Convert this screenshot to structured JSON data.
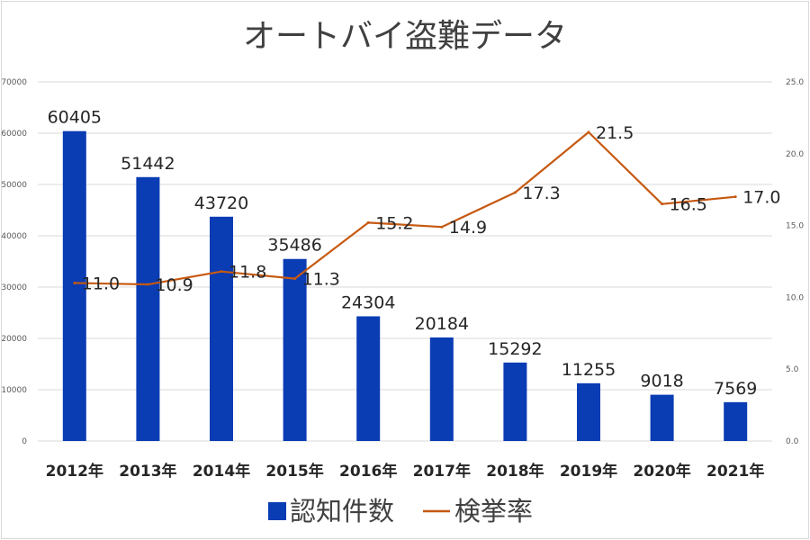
{
  "chart_data": {
    "type": "bar",
    "title": "オートバイ盗難データ",
    "categories": [
      "2012年",
      "2013年",
      "2014年",
      "2015年",
      "2016年",
      "2017年",
      "2018年",
      "2019年",
      "2020年",
      "2021年"
    ],
    "series": [
      {
        "name": "認知件数",
        "type": "bar",
        "axis": "left",
        "color": "#0a3cb4",
        "values": [
          60405,
          51442,
          43720,
          35486,
          24304,
          20184,
          15292,
          11255,
          9018,
          7569
        ],
        "labels": [
          "60405",
          "51442",
          "43720",
          "35486",
          "24304",
          "20184",
          "15292",
          "11255",
          "9018",
          "7569"
        ]
      },
      {
        "name": "検挙率",
        "type": "line",
        "axis": "right",
        "color": "#c65911",
        "values": [
          11.0,
          10.9,
          11.8,
          11.3,
          15.2,
          14.9,
          17.3,
          21.5,
          16.5,
          17.0
        ],
        "labels": [
          "11.0",
          "10.9",
          "11.8",
          "11.3",
          "15.2",
          "14.9",
          "17.3",
          "21.5",
          "16.5",
          "17.0"
        ]
      }
    ],
    "y_left": {
      "min": 0,
      "max": 70000,
      "ticks": [
        0,
        10000,
        20000,
        30000,
        40000,
        50000,
        60000,
        70000
      ],
      "tick_labels": [
        "0",
        "10000",
        "20000",
        "30000",
        "40000",
        "50000",
        "60000",
        "70000"
      ]
    },
    "y_right": {
      "min": 0,
      "max": 25,
      "ticks": [
        0,
        5,
        10,
        15,
        20,
        25
      ],
      "tick_labels": [
        "0.0",
        "5.0",
        "10.0",
        "15.0",
        "20.0",
        "25.0"
      ]
    },
    "grid": true,
    "legend": {
      "position": "bottom",
      "entries": [
        "認知件数",
        "検挙率"
      ]
    }
  }
}
